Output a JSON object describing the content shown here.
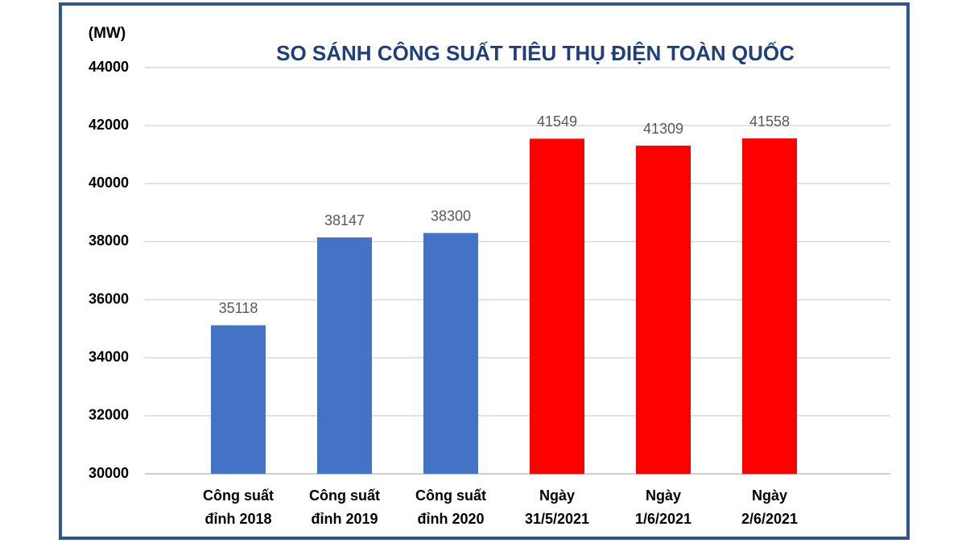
{
  "chart_data": {
    "type": "bar",
    "title": "SO SÁNH CÔNG SUẤT TIÊU THỤ ĐIỆN TOÀN QUỐC",
    "y_label": "(MW)",
    "categories": [
      "Công suất\nđỉnh 2018",
      "Công suất\nđỉnh 2019",
      "Công suất\nđỉnh 2020",
      "Ngày\n31/5/2021",
      "Ngày\n1/6/2021",
      "Ngày\n2/6/2021"
    ],
    "values": [
      35118,
      38147,
      38300,
      41549,
      41309,
      41558
    ],
    "colors": [
      "#4472c4",
      "#4472c4",
      "#4472c4",
      "#ff0000",
      "#ff0000",
      "#ff0000"
    ],
    "ylim": [
      30000,
      44000
    ],
    "yticks": [
      30000,
      32000,
      34000,
      36000,
      38000,
      40000,
      42000,
      44000
    ],
    "grid": true
  }
}
